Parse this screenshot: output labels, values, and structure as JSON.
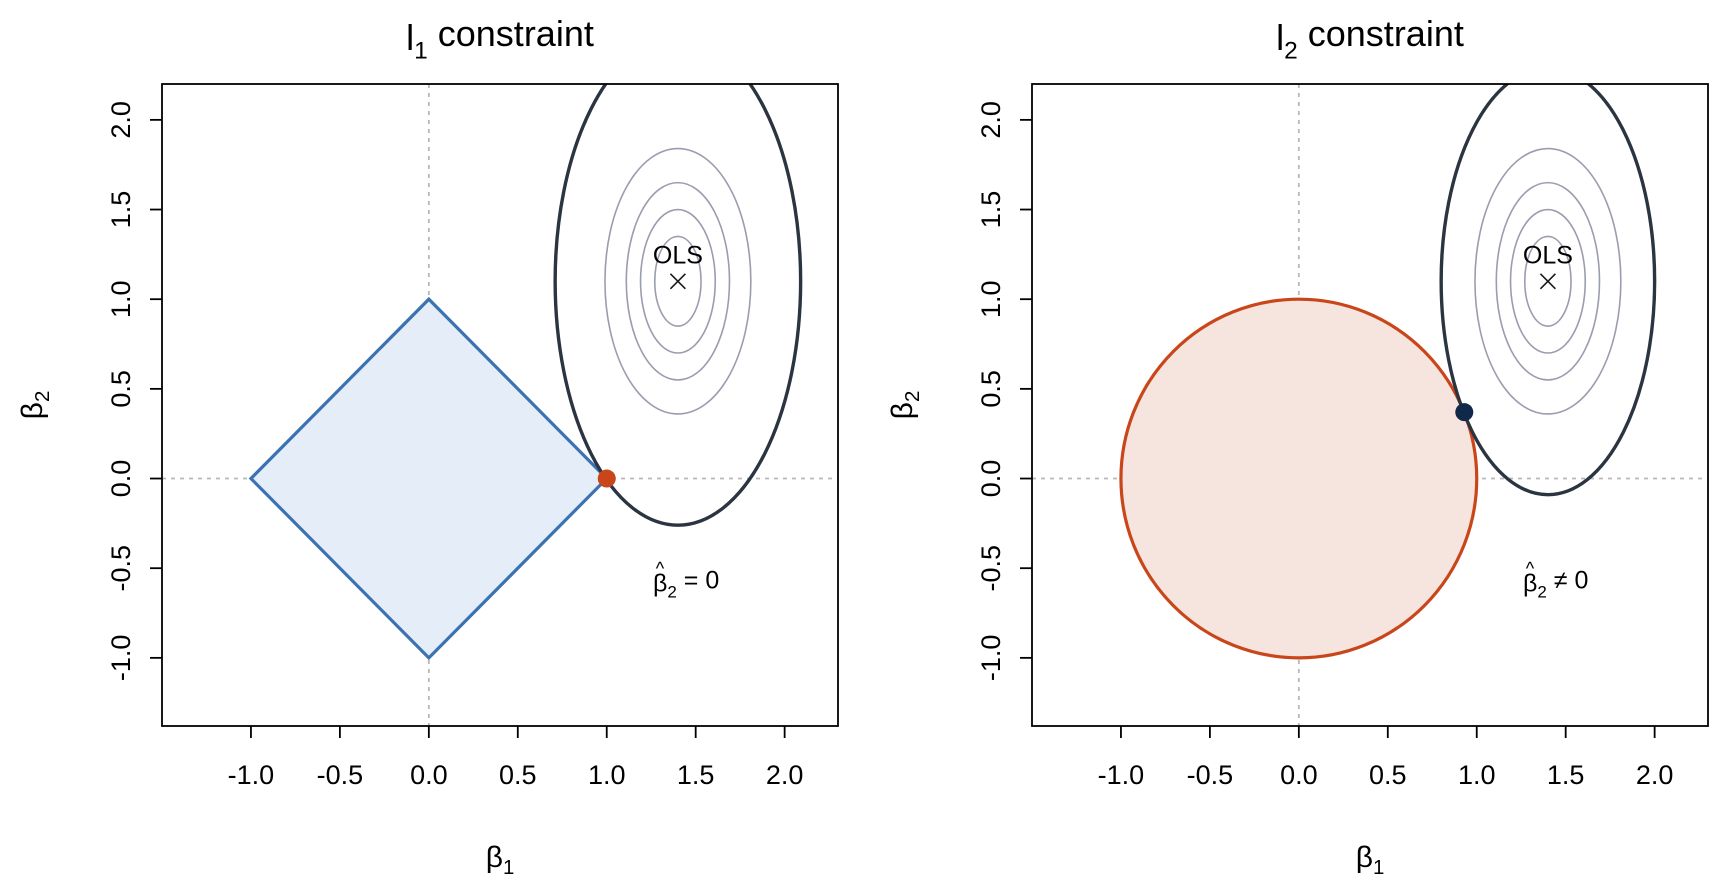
{
  "colors": {
    "l1_region_fill": "#e5eef8",
    "l1_region_stroke": "#3b73b2",
    "l1_point": "#c9461a",
    "l2_region_fill": "#f6e5de",
    "l2_region_stroke": "#c9461a",
    "l2_point": "#10284a",
    "outer_contour": "#2b3441",
    "inner_contour": "#9a9dae",
    "reference_lines": "#b8b8b8"
  },
  "chart_data": [
    {
      "type": "contour",
      "title_main": "l",
      "title_sub": "1",
      "title_rest": " constraint",
      "xlabel_main": "β",
      "xlabel_sub": "1",
      "ylabel_main": "β",
      "ylabel_sub": "2",
      "xlim": [
        -1.5,
        2.3
      ],
      "ylim": [
        -1.38,
        2.2
      ],
      "xticks": [
        -1.0,
        -0.5,
        0.0,
        0.5,
        1.0,
        1.5,
        2.0
      ],
      "xtick_labels": [
        "-1.0",
        "-0.5",
        "0.0",
        "0.5",
        "1.0",
        "1.5",
        "2.0"
      ],
      "yticks": [
        -1.0,
        -0.5,
        0.0,
        0.5,
        1.0,
        1.5,
        2.0
      ],
      "ytick_labels": [
        "-1.0",
        "-0.5",
        "0.0",
        "0.5",
        "1.0",
        "1.5",
        "2.0"
      ],
      "reference_lines": {
        "x": 0,
        "y": 0
      },
      "constraint": {
        "shape": "diamond",
        "vertices": [
          [
            1,
            0
          ],
          [
            0,
            1
          ],
          [
            -1,
            0
          ],
          [
            0,
            -1
          ]
        ]
      },
      "ols": {
        "x": 1.4,
        "y": 1.1,
        "label": "OLS"
      },
      "contours": [
        {
          "rx": 0.13,
          "ry": 0.25,
          "style": "inner"
        },
        {
          "rx": 0.21,
          "ry": 0.4,
          "style": "inner"
        },
        {
          "rx": 0.29,
          "ry": 0.55,
          "style": "inner"
        },
        {
          "rx": 0.41,
          "ry": 0.74,
          "style": "inner"
        },
        {
          "rx": 0.69,
          "ry": 1.36,
          "style": "outer"
        }
      ],
      "solution": {
        "x": 1.0,
        "y": 0.0
      },
      "annotation": {
        "x": 1.26,
        "y": -0.63,
        "main": "β",
        "hat": "^",
        "sub": "2",
        "rest": " = 0"
      }
    },
    {
      "type": "contour",
      "title_main": "l",
      "title_sub": "2",
      "title_rest": " constraint",
      "xlabel_main": "β",
      "xlabel_sub": "1",
      "ylabel_main": "β",
      "ylabel_sub": "2",
      "xlim": [
        -1.5,
        2.3
      ],
      "ylim": [
        -1.38,
        2.2
      ],
      "xticks": [
        -1.0,
        -0.5,
        0.0,
        0.5,
        1.0,
        1.5,
        2.0
      ],
      "xtick_labels": [
        "-1.0",
        "-0.5",
        "0.0",
        "0.5",
        "1.0",
        "1.5",
        "2.0"
      ],
      "yticks": [
        -1.0,
        -0.5,
        0.0,
        0.5,
        1.0,
        1.5,
        2.0
      ],
      "ytick_labels": [
        "-1.0",
        "-0.5",
        "0.0",
        "0.5",
        "1.0",
        "1.5",
        "2.0"
      ],
      "reference_lines": {
        "x": 0,
        "y": 0
      },
      "constraint": {
        "shape": "circle",
        "cx": 0,
        "cy": 0,
        "r": 1
      },
      "ols": {
        "x": 1.4,
        "y": 1.1,
        "label": "OLS"
      },
      "contours": [
        {
          "rx": 0.13,
          "ry": 0.25,
          "style": "inner"
        },
        {
          "rx": 0.21,
          "ry": 0.4,
          "style": "inner"
        },
        {
          "rx": 0.29,
          "ry": 0.55,
          "style": "inner"
        },
        {
          "rx": 0.41,
          "ry": 0.74,
          "style": "inner"
        },
        {
          "rx": 0.6,
          "ry": 1.19,
          "style": "outer"
        }
      ],
      "solution": {
        "x": 0.93,
        "y": 0.37
      },
      "annotation": {
        "x": 1.26,
        "y": -0.63,
        "main": "β",
        "hat": "^",
        "sub": "2",
        "rest": " ≠ 0"
      }
    }
  ]
}
